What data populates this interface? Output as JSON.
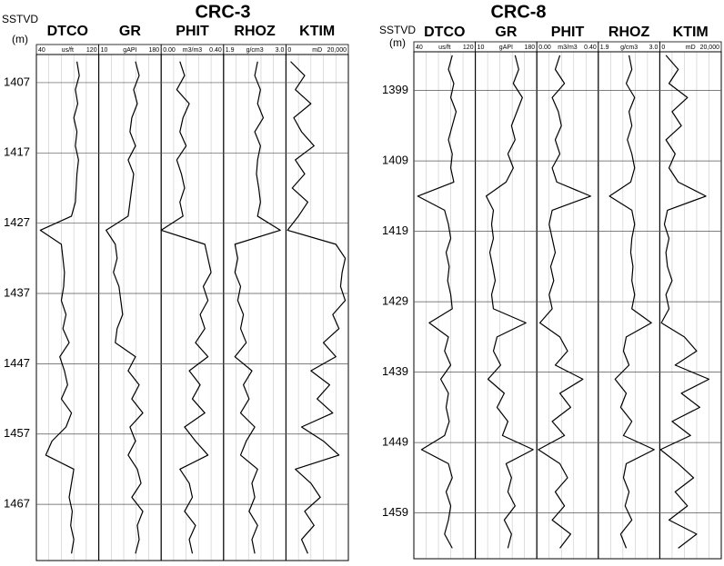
{
  "chart_data": [
    {
      "type": "well-log",
      "title": "CRC-3",
      "depth_label": "SSTVD",
      "depth_unit": "(m)",
      "ylim": [
        1403,
        1475
      ],
      "yticks": [
        1407,
        1417,
        1427,
        1437,
        1447,
        1457,
        1467
      ],
      "depth": [
        1404,
        1406,
        1408,
        1410,
        1412,
        1414,
        1416,
        1418,
        1420,
        1422,
        1424,
        1426,
        1428,
        1430,
        1432,
        1434,
        1436,
        1438,
        1440,
        1442,
        1444,
        1446,
        1448,
        1450,
        1452,
        1454,
        1456,
        1458,
        1460,
        1462,
        1464,
        1466,
        1468,
        1470,
        1472,
        1474
      ],
      "tracks": [
        {
          "name": "DTCO",
          "unit": "us/ft",
          "xlim": [
            40,
            120
          ],
          "xticks": [
            40,
            120
          ],
          "color": "#000000",
          "values": [
            92,
            95,
            90,
            93,
            88,
            92,
            90,
            94,
            92,
            91,
            90,
            85,
            45,
            72,
            74,
            76,
            75,
            72,
            78,
            74,
            82,
            70,
            76,
            80,
            72,
            85,
            78,
            60,
            52,
            88,
            85,
            82,
            86,
            84,
            88,
            85
          ]
        },
        {
          "name": "GR",
          "unit": "gAPI",
          "xlim": [
            10,
            180
          ],
          "xticks": [
            10,
            180
          ],
          "color": "#000000",
          "values": [
            110,
            120,
            105,
            115,
            100,
            95,
            110,
            90,
            105,
            100,
            95,
            90,
            30,
            55,
            60,
            50,
            65,
            70,
            75,
            60,
            55,
            110,
            90,
            120,
            100,
            130,
            95,
            110,
            90,
            115,
            125,
            100,
            130,
            115,
            120,
            110
          ]
        },
        {
          "name": "PHIT",
          "unit": "m3/m3",
          "xlim": [
            0,
            0.4
          ],
          "xticks": [
            {
              "value": 0,
              "label": "0.00"
            },
            {
              "value": 0.4,
              "label": "0.40"
            }
          ],
          "color": "#000000",
          "values": [
            0.12,
            0.15,
            0.1,
            0.18,
            0.14,
            0.12,
            0.16,
            0.1,
            0.13,
            0.15,
            0.12,
            0.14,
            0.0,
            0.28,
            0.3,
            0.32,
            0.27,
            0.3,
            0.25,
            0.28,
            0.22,
            0.3,
            0.18,
            0.25,
            0.2,
            0.28,
            0.15,
            0.22,
            0.3,
            0.12,
            0.18,
            0.2,
            0.15,
            0.22,
            0.18,
            0.2
          ]
        },
        {
          "name": "RHOZ",
          "unit": "g/cm3",
          "xlim": [
            1.9,
            3.0
          ],
          "xticks": [
            1.9,
            {
              "value": 3.0,
              "label": "3.0"
            }
          ],
          "color": "#000000",
          "values": [
            2.5,
            2.45,
            2.55,
            2.5,
            2.6,
            2.45,
            2.55,
            2.5,
            2.48,
            2.52,
            2.55,
            2.5,
            2.9,
            2.1,
            2.15,
            2.1,
            2.2,
            2.15,
            2.25,
            2.2,
            2.3,
            2.1,
            2.4,
            2.25,
            2.35,
            2.2,
            2.45,
            2.3,
            2.2,
            2.5,
            2.4,
            2.45,
            2.35,
            2.5,
            2.4,
            2.45
          ]
        },
        {
          "name": "KTIM",
          "unit": "mD",
          "xlim": [
            0,
            20000
          ],
          "xticks": [
            0,
            {
              "value": 20000,
              "label": "20,000"
            }
          ],
          "color": "#000000",
          "values": [
            1500,
            6000,
            3000,
            8000,
            2500,
            5000,
            9000,
            3000,
            6000,
            2000,
            7000,
            4000,
            500,
            16000,
            19000,
            18000,
            17500,
            19000,
            15000,
            17000,
            12000,
            16000,
            8000,
            14000,
            10000,
            15000,
            5000,
            12000,
            17000,
            3000,
            8000,
            11000,
            6000,
            9000,
            5000,
            7000
          ]
        }
      ]
    },
    {
      "type": "well-log",
      "title": "CRC-8",
      "depth_label": "SSTVD",
      "depth_unit": "(m)",
      "ylim": [
        1393.5,
        1465.5
      ],
      "yticks": [
        1399,
        1409,
        1419,
        1429,
        1439,
        1449,
        1459
      ],
      "depth": [
        1394,
        1396,
        1398,
        1400,
        1402,
        1404,
        1406,
        1408,
        1410,
        1412,
        1414,
        1416,
        1418,
        1420,
        1422,
        1424,
        1426,
        1428,
        1430,
        1432,
        1434,
        1436,
        1438,
        1440,
        1442,
        1444,
        1446,
        1448,
        1450,
        1452,
        1454,
        1456,
        1458,
        1460,
        1462,
        1464
      ],
      "tracks": [
        {
          "name": "DTCO",
          "unit": "us/ft",
          "xlim": [
            40,
            120
          ],
          "xticks": [
            40,
            120
          ],
          "color": "#000000",
          "values": [
            90,
            85,
            92,
            88,
            95,
            90,
            85,
            90,
            88,
            92,
            45,
            80,
            85,
            88,
            82,
            86,
            84,
            88,
            90,
            60,
            85,
            80,
            88,
            75,
            85,
            82,
            86,
            80,
            50,
            85,
            90,
            82,
            88,
            85,
            80,
            90
          ]
        },
        {
          "name": "GR",
          "unit": "gAPI",
          "xlim": [
            10,
            180
          ],
          "xticks": [
            10,
            180
          ],
          "color": "#000000",
          "values": [
            120,
            130,
            115,
            140,
            125,
            110,
            120,
            100,
            115,
            95,
            40,
            60,
            55,
            60,
            50,
            58,
            65,
            55,
            60,
            150,
            70,
            60,
            80,
            45,
            90,
            70,
            100,
            85,
            170,
            95,
            110,
            100,
            120,
            90,
            110,
            100
          ]
        },
        {
          "name": "PHIT",
          "unit": "m3/m3",
          "xlim": [
            0,
            0.4
          ],
          "xticks": [
            {
              "value": 0,
              "label": "0.00"
            },
            {
              "value": 0.4,
              "label": "0.40"
            }
          ],
          "color": "#000000",
          "values": [
            0.15,
            0.12,
            0.18,
            0.1,
            0.14,
            0.16,
            0.12,
            0.15,
            0.1,
            0.13,
            0.35,
            0.1,
            0.08,
            0.1,
            0.12,
            0.09,
            0.11,
            0.08,
            0.1,
            0.02,
            0.15,
            0.2,
            0.12,
            0.3,
            0.15,
            0.22,
            0.1,
            0.18,
            0.01,
            0.15,
            0.2,
            0.12,
            0.18,
            0.1,
            0.22,
            0.15
          ]
        },
        {
          "name": "RHOZ",
          "unit": "g/cm3",
          "xlim": [
            1.9,
            3.0
          ],
          "xticks": [
            1.9,
            {
              "value": 3.0,
              "label": "3.0"
            }
          ],
          "color": "#000000",
          "values": [
            2.45,
            2.5,
            2.4,
            2.55,
            2.45,
            2.5,
            2.42,
            2.5,
            2.55,
            2.48,
            2.1,
            2.5,
            2.55,
            2.5,
            2.48,
            2.52,
            2.5,
            2.55,
            2.5,
            2.85,
            2.4,
            2.35,
            2.45,
            2.2,
            2.4,
            2.3,
            2.5,
            2.35,
            2.9,
            2.4,
            2.35,
            2.45,
            2.38,
            2.5,
            2.3,
            2.4
          ]
        },
        {
          "name": "KTIM",
          "unit": "mD",
          "xlim": [
            0,
            20000
          ],
          "xticks": [
            {
              "value": 0,
              "label": "0"
            },
            {
              "value": 20000,
              "label": "20,000"
            }
          ],
          "color": "#000000",
          "values": [
            2000,
            6000,
            3000,
            9000,
            4000,
            7000,
            2000,
            5000,
            3000,
            6000,
            15000,
            2500,
            1500,
            3000,
            2000,
            2500,
            4000,
            2000,
            3000,
            500,
            8000,
            12000,
            5000,
            16000,
            7000,
            13000,
            4000,
            10000,
            200,
            6000,
            11000,
            5000,
            9000,
            3000,
            12000,
            6000
          ]
        }
      ]
    }
  ]
}
